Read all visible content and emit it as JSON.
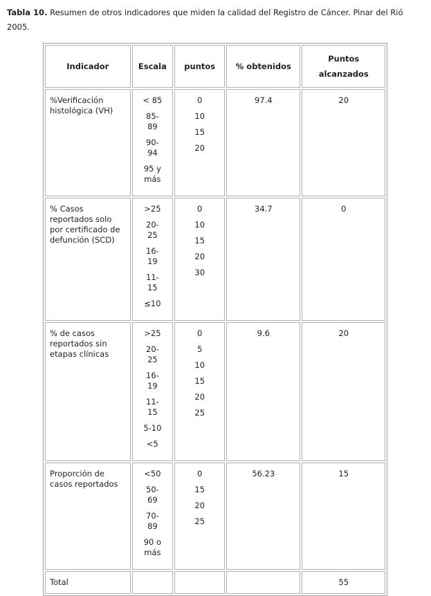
{
  "caption": {
    "label": "Tabla 10.",
    "text": "Resumen de otros indicadores que miden la calidad del Registro de Cáncer. Pinar del Rió 2005."
  },
  "table": {
    "headers": [
      "Indicador",
      "Escala",
      "puntos",
      "% obtenidos",
      "Puntos alcanzados"
    ],
    "rows": [
      {
        "indicador": "%Verificación histológica (VH)",
        "escala": [
          "< 85",
          "85-89",
          "90-94",
          "95 y más"
        ],
        "puntos": [
          "0",
          "10",
          "15",
          "20"
        ],
        "obtenidos": "97.4",
        "alcanzados": "20"
      },
      {
        "indicador": "% Casos reportados solo por certificado de defunción (SCD)",
        "escala": [
          ">25",
          "20-25",
          "16-19",
          "11-15",
          "≤10"
        ],
        "puntos": [
          "0",
          "10",
          "15",
          "20",
          "30"
        ],
        "obtenidos": "34.7",
        "alcanzados": "0"
      },
      {
        "indicador": "% de casos reportados sin etapas clínicas",
        "escala": [
          ">25",
          "20-25",
          "16-19",
          "11-15",
          "5-10",
          "<5"
        ],
        "puntos": [
          "0",
          "5",
          "10",
          "15",
          "20",
          "25"
        ],
        "obtenidos": "9.6",
        "alcanzados": "20"
      },
      {
        "indicador": "Proporción de casos reportados",
        "escala": [
          "<50",
          "50-69",
          "70-89",
          "90 o más"
        ],
        "puntos": [
          "0",
          "15",
          "20",
          "25"
        ],
        "obtenidos": "56.23",
        "alcanzados": "15"
      }
    ],
    "total": {
      "label": "Total",
      "alcanzados": "55"
    }
  }
}
